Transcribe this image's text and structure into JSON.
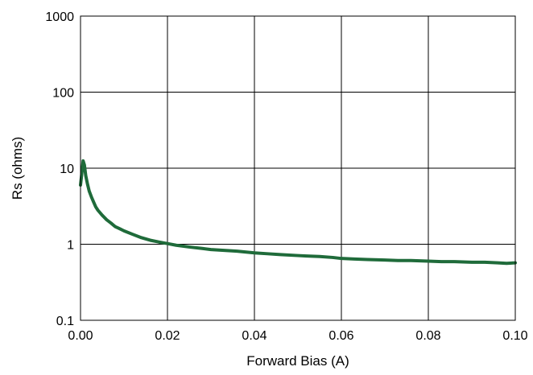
{
  "chart_data": {
    "type": "line",
    "title": "",
    "xlabel": "Forward Bias (A)",
    "ylabel": "Rs (ohms)",
    "xlim": [
      0,
      0.1
    ],
    "ylim": [
      0.1,
      1000
    ],
    "yscale": "log",
    "grid": true,
    "x_ticks": [
      0,
      0.02,
      0.04,
      0.06,
      0.08,
      0.1
    ],
    "x_tick_labels": [
      "0.00",
      "0.02",
      "0.04",
      "0.06",
      "0.08",
      "0.10"
    ],
    "y_ticks": [
      0.1,
      1,
      10,
      100,
      1000
    ],
    "y_tick_labels": [
      "0.1",
      "1",
      "10",
      "100",
      "1000"
    ],
    "series": [
      {
        "color": "#1f6b3a",
        "x": [
          0.0,
          0.0003,
          0.0006,
          0.0009,
          0.0012,
          0.0016,
          0.002,
          0.0025,
          0.003,
          0.0035,
          0.004,
          0.005,
          0.006,
          0.007,
          0.008,
          0.009,
          0.01,
          0.012,
          0.014,
          0.016,
          0.018,
          0.02,
          0.022,
          0.025,
          0.028,
          0.03,
          0.033,
          0.036,
          0.04,
          0.043,
          0.046,
          0.05,
          0.052,
          0.055,
          0.058,
          0.06,
          0.063,
          0.066,
          0.07,
          0.073,
          0.076,
          0.08,
          0.083,
          0.086,
          0.09,
          0.093,
          0.096,
          0.098,
          0.1
        ],
        "y": [
          6.0,
          8.5,
          12.5,
          11.0,
          8.0,
          6.2,
          5.0,
          4.2,
          3.6,
          3.1,
          2.8,
          2.4,
          2.1,
          1.9,
          1.7,
          1.6,
          1.5,
          1.35,
          1.22,
          1.13,
          1.07,
          1.02,
          0.97,
          0.92,
          0.88,
          0.85,
          0.83,
          0.81,
          0.77,
          0.75,
          0.73,
          0.71,
          0.7,
          0.69,
          0.67,
          0.65,
          0.64,
          0.63,
          0.62,
          0.61,
          0.61,
          0.6,
          0.59,
          0.59,
          0.58,
          0.58,
          0.57,
          0.56,
          0.57
        ]
      }
    ]
  }
}
